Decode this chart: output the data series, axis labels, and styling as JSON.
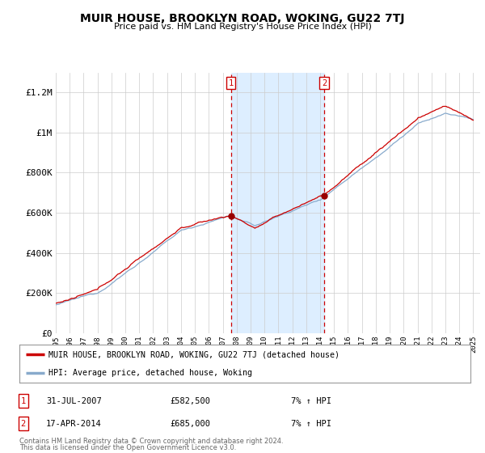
{
  "title": "MUIR HOUSE, BROOKLYN ROAD, WOKING, GU22 7TJ",
  "subtitle": "Price paid vs. HM Land Registry's House Price Index (HPI)",
  "ylim": [
    0,
    1300000
  ],
  "yticks": [
    0,
    200000,
    400000,
    600000,
    800000,
    1000000,
    1200000
  ],
  "ytick_labels": [
    "£0",
    "£200K",
    "£400K",
    "£600K",
    "£800K",
    "£1M",
    "£1.2M"
  ],
  "xmin": 1995,
  "xmax": 2025.5,
  "sale1": {
    "date_label": "31-JUL-2007",
    "price": 582500,
    "hpi_change": "7% ↑ HPI",
    "x": 2007.58
  },
  "sale2": {
    "date_label": "17-APR-2014",
    "price": 685000,
    "hpi_change": "7% ↑ HPI",
    "x": 2014.29
  },
  "legend_line1": "MUIR HOUSE, BROOKLYN ROAD, WOKING, GU22 7TJ (detached house)",
  "legend_line2": "HPI: Average price, detached house, Woking",
  "footnote1": "Contains HM Land Registry data © Crown copyright and database right 2024.",
  "footnote2": "This data is licensed under the Open Government Licence v3.0.",
  "line_color_red": "#cc0000",
  "line_color_blue": "#88aacc",
  "shade_color": "#ddeeff",
  "bg_color": "#ffffff",
  "grid_color": "#cccccc",
  "sale_marker_color": "#990000",
  "box_color": "#cc0000"
}
